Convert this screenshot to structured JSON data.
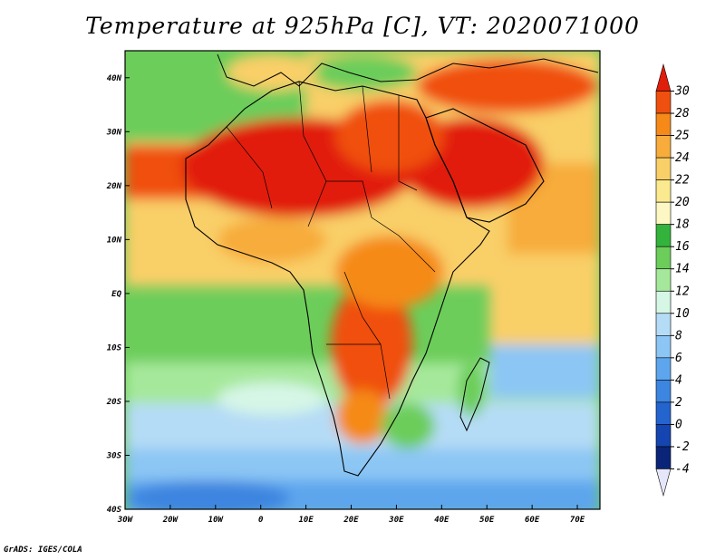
{
  "title": "Temperature at 925hPa [C], VT: 2020071000",
  "footer": "GrADS: IGES/COLA",
  "map": {
    "lon_labels": [
      "30W",
      "20W",
      "10W",
      "0",
      "10E",
      "20E",
      "30E",
      "40E",
      "50E",
      "60E",
      "70E"
    ],
    "lat_labels": [
      "40N",
      "30N",
      "20N",
      "10N",
      "EQ",
      "10S",
      "20S",
      "30S",
      "40S"
    ],
    "lon_range": [
      -30,
      75
    ],
    "lat_range": [
      -40,
      45
    ]
  },
  "colorbar": {
    "labels": [
      "30",
      "28",
      "25",
      "24",
      "22",
      "20",
      "18",
      "16",
      "14",
      "12",
      "10",
      "8",
      "6",
      "4",
      "2",
      "0",
      "-2",
      "-4"
    ],
    "colors": [
      "#e11e0a",
      "#f0500f",
      "#f58a19",
      "#f7ac3b",
      "#f9cf68",
      "#fbe98f",
      "#fcf7c3",
      "#33b33b",
      "#6ccd5a",
      "#a6e89b",
      "#d6f6e6",
      "#b5dcf6",
      "#8cc6f4",
      "#5da6ed",
      "#3c85e0",
      "#2364cf",
      "#1445b0",
      "#0a2578",
      "#e6e6fa"
    ],
    "unit": "C"
  }
}
